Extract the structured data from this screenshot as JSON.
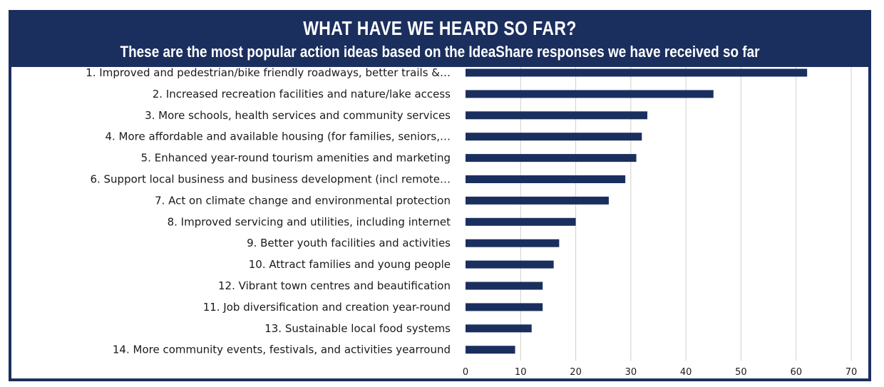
{
  "banner": {
    "title": "WHAT HAVE WE HEARD SO FAR?",
    "subtitle": "These are the most popular action ideas based on the IdeaShare responses we have received so far"
  },
  "chart_data": {
    "type": "bar",
    "orientation": "horizontal",
    "categories": [
      "1. Improved and pedestrian/bike friendly roadways, better trails &…",
      "2. Increased recreation facilities and nature/lake access",
      "3. More schools, health services and community services",
      "4. More affordable and available housing (for families, seniors,…",
      "5. Enhanced year-round tourism amenities and marketing",
      "6. Support local business and business development (incl remote…",
      "7. Act on climate change and environmental protection",
      "8. Improved servicing and utilities, including internet",
      "9. Better youth facilities and activities",
      "10. Attract families and young people",
      "12. Vibrant town centres and beautification",
      "11. Job diversification and creation year-round",
      "13. Sustainable local food systems",
      "14. More community events, festivals, and activities yearround"
    ],
    "values": [
      62,
      45,
      33,
      32,
      31,
      29,
      26,
      20,
      17,
      16,
      14,
      14,
      12,
      9
    ],
    "xlim": [
      0,
      70
    ],
    "xticks": [
      0,
      10,
      20,
      30,
      40,
      50,
      60,
      70
    ],
    "grid": "vertical",
    "bar_color": "#1b2f5e",
    "grid_color": "#d0d0d0"
  }
}
